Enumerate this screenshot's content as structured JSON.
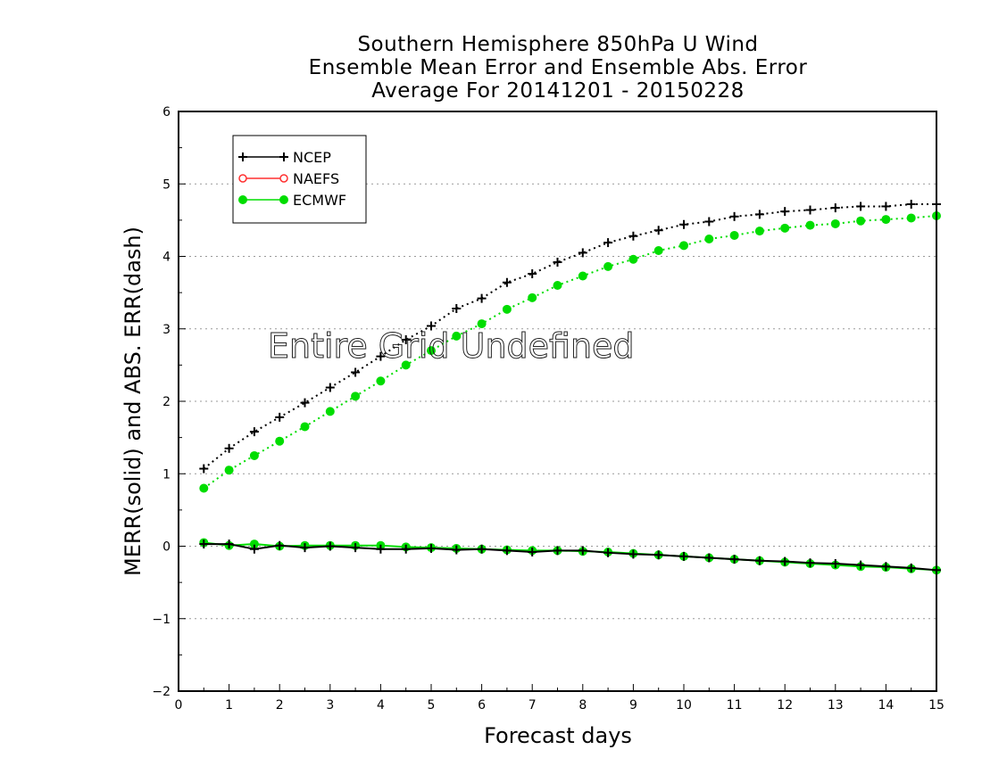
{
  "chart_data": {
    "type": "line",
    "title": [
      "Southern Hemisphere 850hPa U Wind",
      "Ensemble Mean Error and Ensemble Abs. Error",
      "Average For 20141201 - 20150228"
    ],
    "xlabel": "Forecast days",
    "ylabel": "MERR(solid) and ABS. ERR(dash)",
    "xlim": [
      0,
      15
    ],
    "ylim": [
      -2,
      6
    ],
    "xticks": [
      0,
      1,
      2,
      3,
      4,
      5,
      6,
      7,
      8,
      9,
      10,
      11,
      12,
      13,
      14,
      15
    ],
    "yticks": [
      -2,
      -1,
      0,
      1,
      2,
      3,
      4,
      5,
      6
    ],
    "ytick_labels": [
      "−2",
      "−1",
      "0",
      "1",
      "2",
      "3",
      "4",
      "5",
      "6"
    ],
    "grid": "horizontal dotted",
    "legend_position": "top-left",
    "annotation": "Entire Grid Undefined",
    "x": [
      0.5,
      1.0,
      1.5,
      2.0,
      2.5,
      3.0,
      3.5,
      4.0,
      4.5,
      5.0,
      5.5,
      6.0,
      6.5,
      7.0,
      7.5,
      8.0,
      8.5,
      9.0,
      9.5,
      10.0,
      10.5,
      11.0,
      11.5,
      12.0,
      12.5,
      13.0,
      13.5,
      14.0,
      14.5,
      15.0
    ],
    "series": [
      {
        "name": "NCEP",
        "marker": "plus",
        "color": "#000000",
        "abs_err": [
          1.07,
          1.35,
          1.58,
          1.78,
          1.98,
          2.19,
          2.4,
          2.62,
          2.85,
          3.04,
          3.28,
          3.42,
          3.64,
          3.76,
          3.92,
          4.05,
          4.19,
          4.28,
          4.36,
          4.44,
          4.48,
          4.55,
          4.58,
          4.62,
          4.64,
          4.67,
          4.69,
          4.69,
          4.72,
          4.72
        ],
        "mean_err": [
          0.03,
          0.03,
          -0.04,
          0.01,
          -0.02,
          0.0,
          -0.02,
          -0.04,
          -0.04,
          -0.03,
          -0.05,
          -0.04,
          -0.06,
          -0.08,
          -0.06,
          -0.06,
          -0.09,
          -0.11,
          -0.12,
          -0.14,
          -0.16,
          -0.18,
          -0.2,
          -0.21,
          -0.23,
          -0.24,
          -0.26,
          -0.28,
          -0.3,
          -0.33
        ]
      },
      {
        "name": "NAEFS",
        "marker": "open-circle",
        "color": "#ff3030",
        "abs_err": [],
        "mean_err": []
      },
      {
        "name": "ECMWF",
        "marker": "filled-circle",
        "color": "#00dd00",
        "abs_err": [
          0.8,
          1.05,
          1.25,
          1.45,
          1.65,
          1.86,
          2.07,
          2.28,
          2.5,
          2.7,
          2.9,
          3.07,
          3.27,
          3.43,
          3.6,
          3.73,
          3.86,
          3.96,
          4.08,
          4.15,
          4.24,
          4.29,
          4.35,
          4.39,
          4.43,
          4.45,
          4.49,
          4.51,
          4.53,
          4.56
        ],
        "mean_err": [
          0.05,
          0.01,
          0.03,
          0.0,
          0.01,
          0.01,
          0.01,
          0.01,
          -0.01,
          -0.02,
          -0.03,
          -0.04,
          -0.05,
          -0.06,
          -0.06,
          -0.07,
          -0.08,
          -0.1,
          -0.12,
          -0.14,
          -0.16,
          -0.18,
          -0.2,
          -0.22,
          -0.24,
          -0.26,
          -0.28,
          -0.29,
          -0.31,
          -0.33
        ]
      }
    ]
  }
}
